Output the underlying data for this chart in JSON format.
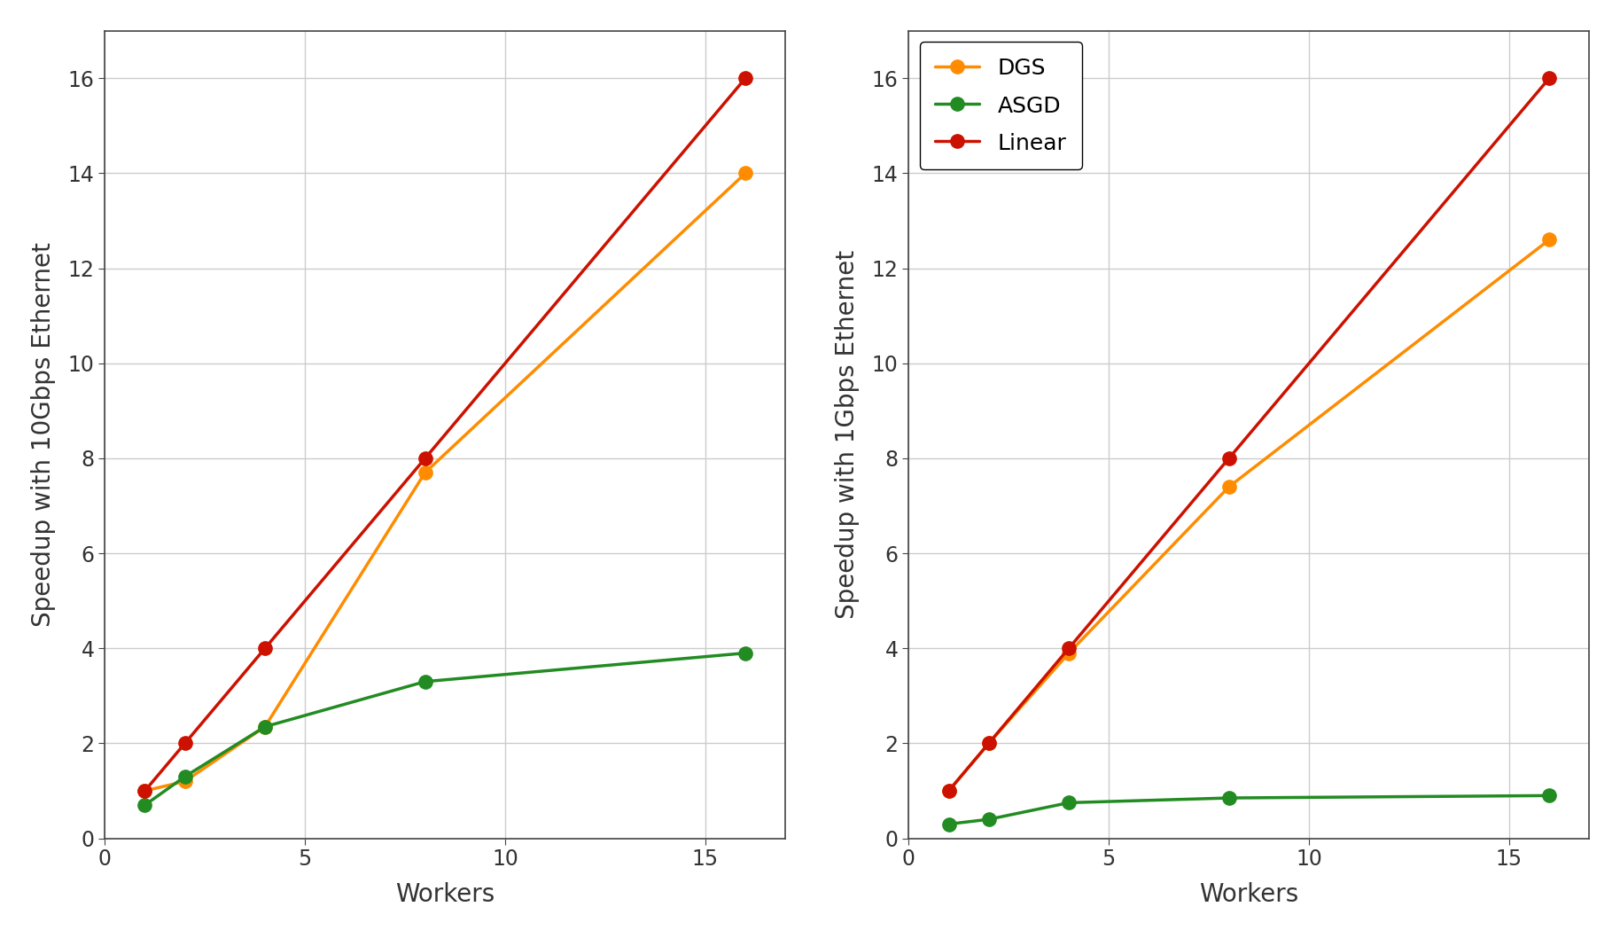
{
  "workers": [
    1,
    2,
    4,
    8,
    16
  ],
  "left": {
    "ylabel": "Speedup with 10Gbps Ethernet",
    "DGS": [
      1.0,
      1.2,
      2.35,
      7.7,
      14.0
    ],
    "ASGD": [
      0.7,
      1.3,
      2.35,
      3.3,
      3.9
    ],
    "Linear": [
      1,
      2,
      4,
      8,
      16
    ]
  },
  "right": {
    "ylabel": "Speedup with 1Gbps Ethernet",
    "DGS": [
      1.0,
      2.0,
      3.9,
      7.4,
      12.6
    ],
    "ASGD": [
      0.3,
      0.4,
      0.75,
      0.85,
      0.9
    ],
    "Linear": [
      1,
      2,
      4,
      8,
      16
    ]
  },
  "colors": {
    "DGS": "#FF8C00",
    "ASGD": "#228B22",
    "Linear": "#CC1100"
  },
  "xlabel": "Workers",
  "ylim": [
    0,
    17
  ],
  "yticks": [
    0,
    2,
    4,
    6,
    8,
    10,
    12,
    14,
    16
  ],
  "xlim": [
    0,
    17
  ],
  "xticks": [
    0,
    5,
    10,
    15
  ],
  "legend_labels": [
    "DGS",
    "ASGD",
    "Linear"
  ],
  "marker": "o",
  "markersize": 11,
  "linewidth": 2.5,
  "plot_bg": "#ffffff",
  "fig_bg": "#ffffff",
  "grid_color": "#cccccc",
  "spine_color": "#444444",
  "text_color": "#333333",
  "label_fontsize": 20,
  "tick_fontsize": 17,
  "legend_fontsize": 18
}
